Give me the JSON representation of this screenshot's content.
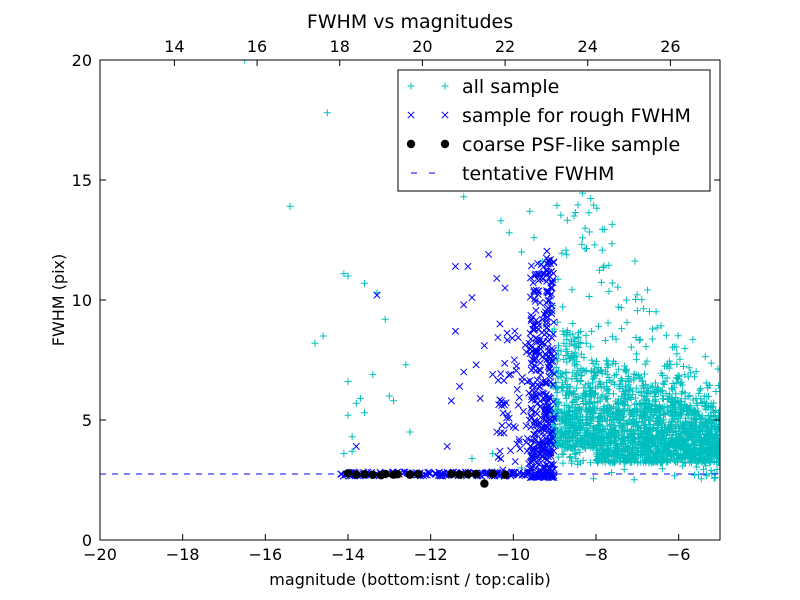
{
  "chart_data": {
    "type": "scatter",
    "title": "FWHM vs magnitudes",
    "xlabel": "magnitude (bottom:isnt / top:calib)",
    "ylabel": "FWHM (pix)",
    "xlim": [
      -20,
      -5
    ],
    "ylim": [
      0,
      20
    ],
    "x_ticks": [
      -20,
      -18,
      -16,
      -14,
      -12,
      -10,
      -8,
      -6
    ],
    "x_tick_labels": [
      "−20",
      "−18",
      "−16",
      "−14",
      "−12",
      "−10",
      "−8",
      "−6"
    ],
    "y_ticks": [
      0,
      5,
      10,
      15,
      20
    ],
    "y_tick_labels": [
      "0",
      "5",
      "10",
      "15",
      "20"
    ],
    "top_axis": {
      "label_offset": 32.2,
      "ticks": [
        14,
        16,
        18,
        20,
        22,
        24,
        26
      ],
      "tick_labels": [
        "14",
        "16",
        "18",
        "20",
        "22",
        "24",
        "26"
      ]
    },
    "legend_position": "upper-right",
    "grid": false,
    "tentative_fwhm": 2.75,
    "series": [
      {
        "name": "all sample",
        "marker": "+",
        "color": "#00bfbf",
        "generated": true,
        "x_range": [
          -9.1,
          -5.0
        ],
        "y_peak": 3.8,
        "points": [
          [
            -16.5,
            20.0
          ],
          [
            -14.5,
            17.8
          ],
          [
            -15.4,
            13.9
          ],
          [
            -14.1,
            11.1
          ],
          [
            -14.0,
            11.0
          ],
          [
            -13.6,
            10.7
          ],
          [
            -13.3,
            10.3
          ],
          [
            -13.1,
            9.2
          ],
          [
            -14.8,
            8.2
          ],
          [
            -14.6,
            8.5
          ],
          [
            -14.0,
            6.6
          ],
          [
            -13.4,
            6.9
          ],
          [
            -13.0,
            6.0
          ],
          [
            -12.9,
            5.8
          ],
          [
            -12.6,
            7.3
          ],
          [
            -13.8,
            5.7
          ],
          [
            -13.7,
            5.9
          ],
          [
            -13.6,
            5.3
          ],
          [
            -14.0,
            5.2
          ],
          [
            -13.9,
            4.3
          ],
          [
            -12.5,
            4.5
          ],
          [
            -14.1,
            3.6
          ],
          [
            -13.9,
            3.7
          ],
          [
            -11.2,
            14.3
          ],
          [
            -10.8,
            15.0
          ],
          [
            -10.3,
            13.3
          ],
          [
            -10.1,
            12.8
          ],
          [
            -9.8,
            12.0
          ],
          [
            -9.6,
            13.7
          ],
          [
            -9.5,
            12.6
          ],
          [
            -9.3,
            11.6
          ],
          [
            -11.0,
            3.4
          ],
          [
            -10.5,
            3.6
          ],
          [
            -9.8,
            3.0
          ]
        ]
      },
      {
        "name": "sample for rough FWHM",
        "marker": "x",
        "color": "#0000ff",
        "generated": true,
        "x_range": [
          -14.2,
          -9.0
        ],
        "y_base": 2.75,
        "points": [
          [
            -11.4,
            11.4
          ],
          [
            -11.1,
            11.4
          ],
          [
            -11.4,
            8.7
          ],
          [
            -11.2,
            9.8
          ],
          [
            -11.0,
            10.1
          ],
          [
            -13.3,
            10.2
          ],
          [
            -13.8,
            3.9
          ],
          [
            -10.6,
            11.9
          ],
          [
            -10.4,
            10.9
          ],
          [
            -10.2,
            10.5
          ],
          [
            -10.7,
            8.1
          ],
          [
            -10.9,
            7.3
          ],
          [
            -11.2,
            7.0
          ],
          [
            -11.5,
            5.8
          ],
          [
            -11.3,
            6.4
          ],
          [
            -10.8,
            5.9
          ],
          [
            -10.5,
            6.9
          ],
          [
            -11.6,
            3.9
          ],
          [
            -10.4,
            4.5
          ]
        ]
      },
      {
        "name": "coarse PSF-like sample",
        "marker": "o",
        "color": "#000000",
        "points": [
          [
            -14.0,
            2.78
          ],
          [
            -13.8,
            2.72
          ],
          [
            -13.6,
            2.74
          ],
          [
            -13.4,
            2.72
          ],
          [
            -13.2,
            2.7
          ],
          [
            -13.1,
            2.75
          ],
          [
            -12.9,
            2.72
          ],
          [
            -12.8,
            2.74
          ],
          [
            -12.5,
            2.72
          ],
          [
            -12.3,
            2.74
          ],
          [
            -11.5,
            2.75
          ],
          [
            -11.3,
            2.72
          ],
          [
            -11.1,
            2.74
          ],
          [
            -10.9,
            2.75
          ],
          [
            -10.5,
            2.76
          ],
          [
            -10.2,
            2.72
          ],
          [
            -10.7,
            2.35
          ]
        ]
      },
      {
        "name": "tentative FWHM",
        "marker": "dashed-line",
        "color": "#0000ff"
      }
    ]
  }
}
